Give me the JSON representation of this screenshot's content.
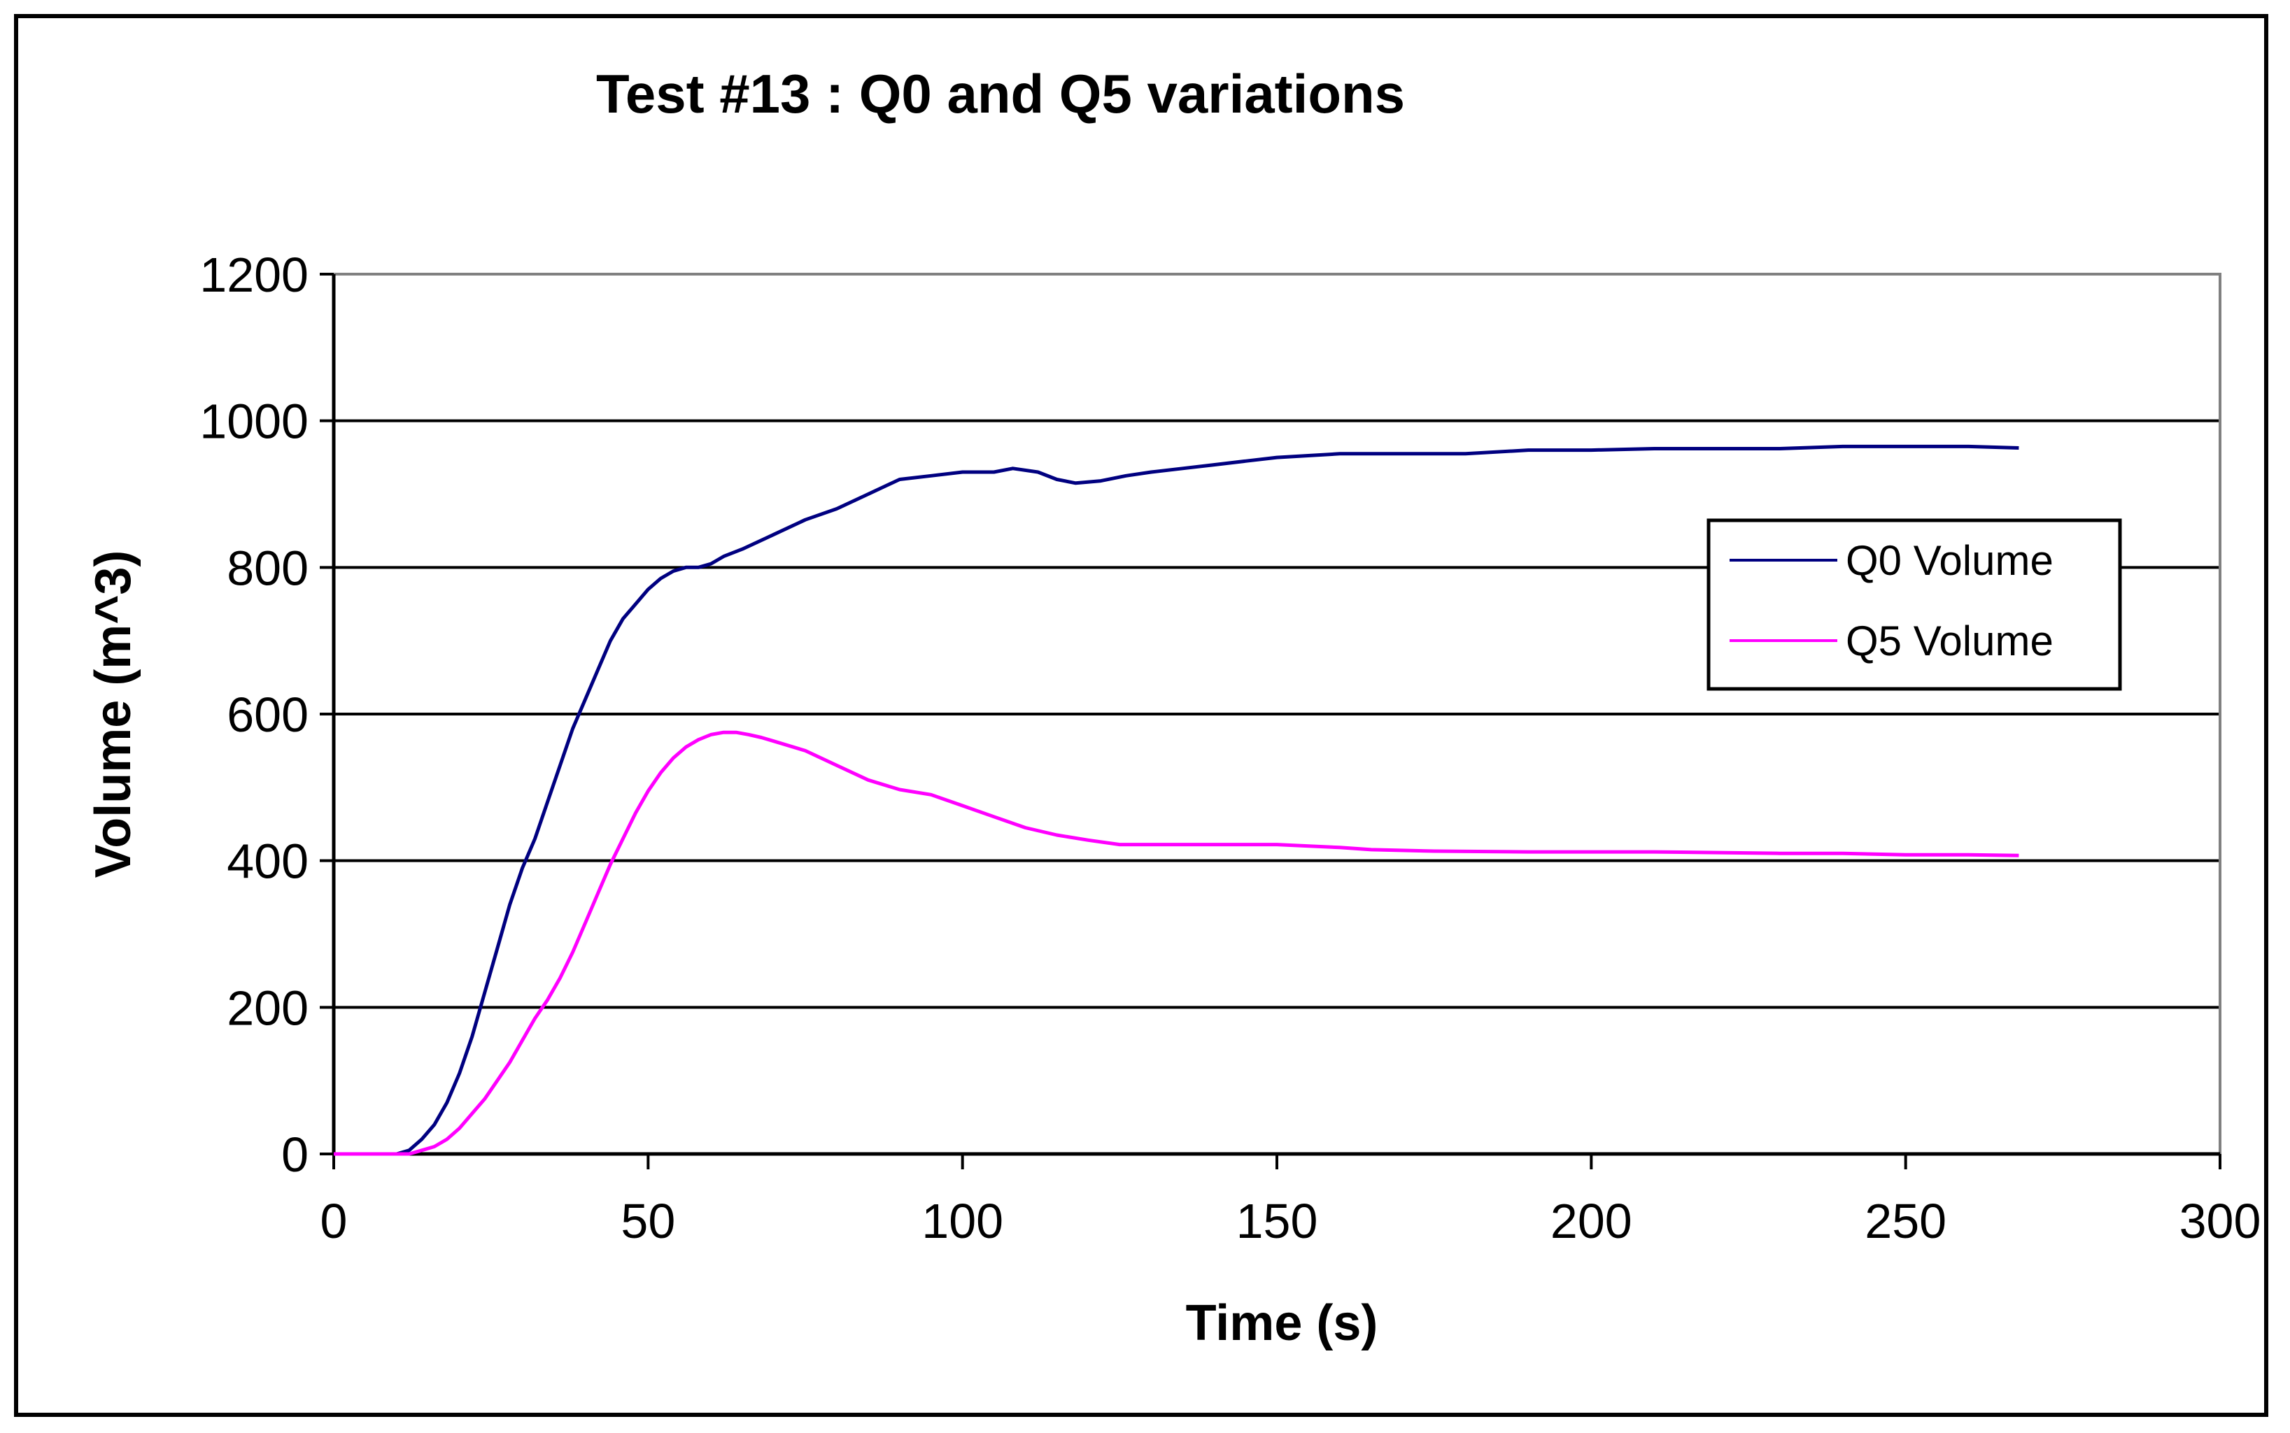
{
  "chart_data": {
    "type": "line",
    "title": "Test #13 : Q0 and Q5 variations",
    "xlabel": "Time (s)",
    "ylabel": "Volume (m^3)",
    "xlim": [
      0,
      300
    ],
    "ylim": [
      0,
      1200
    ],
    "xticks": [
      0,
      50,
      100,
      150,
      200,
      250,
      300
    ],
    "yticks": [
      0,
      200,
      400,
      600,
      800,
      1000,
      1200
    ],
    "grid": "horizontal",
    "legend_position": "right",
    "series": [
      {
        "name": "Q0 Volume",
        "color": "#000080",
        "x": [
          0,
          10,
          12,
          14,
          16,
          18,
          20,
          22,
          24,
          26,
          28,
          30,
          32,
          34,
          36,
          38,
          40,
          42,
          44,
          46,
          48,
          50,
          52,
          54,
          56,
          58,
          60,
          62,
          65,
          70,
          75,
          80,
          85,
          90,
          95,
          100,
          105,
          108,
          112,
          115,
          118,
          122,
          126,
          130,
          135,
          140,
          145,
          150,
          160,
          170,
          180,
          190,
          200,
          210,
          220,
          230,
          240,
          250,
          260,
          268
        ],
        "y": [
          0,
          0,
          5,
          20,
          40,
          70,
          110,
          160,
          220,
          280,
          340,
          390,
          430,
          480,
          530,
          580,
          620,
          660,
          700,
          730,
          750,
          770,
          785,
          795,
          800,
          800,
          805,
          815,
          825,
          845,
          865,
          880,
          900,
          920,
          925,
          930,
          930,
          935,
          930,
          920,
          915,
          918,
          925,
          930,
          935,
          940,
          945,
          950,
          955,
          955,
          955,
          960,
          960,
          962,
          962,
          962,
          965,
          965,
          965,
          963
        ]
      },
      {
        "name": "Q5 Volume",
        "color": "#FF00FF",
        "x": [
          0,
          12,
          14,
          16,
          18,
          20,
          22,
          24,
          26,
          28,
          30,
          32,
          34,
          36,
          38,
          40,
          42,
          44,
          46,
          48,
          50,
          52,
          54,
          56,
          58,
          60,
          62,
          64,
          66,
          68,
          70,
          75,
          80,
          85,
          90,
          95,
          100,
          105,
          110,
          115,
          120,
          125,
          130,
          140,
          150,
          160,
          165,
          175,
          190,
          210,
          230,
          240,
          250,
          260,
          268
        ],
        "y": [
          0,
          0,
          5,
          10,
          20,
          35,
          55,
          75,
          100,
          125,
          155,
          185,
          210,
          240,
          275,
          315,
          355,
          395,
          430,
          465,
          495,
          520,
          540,
          555,
          565,
          572,
          575,
          575,
          572,
          568,
          563,
          550,
          530,
          510,
          497,
          490,
          475,
          460,
          445,
          435,
          428,
          422,
          422,
          422,
          422,
          418,
          415,
          413,
          412,
          412,
          410,
          410,
          408,
          408,
          407
        ]
      }
    ]
  }
}
